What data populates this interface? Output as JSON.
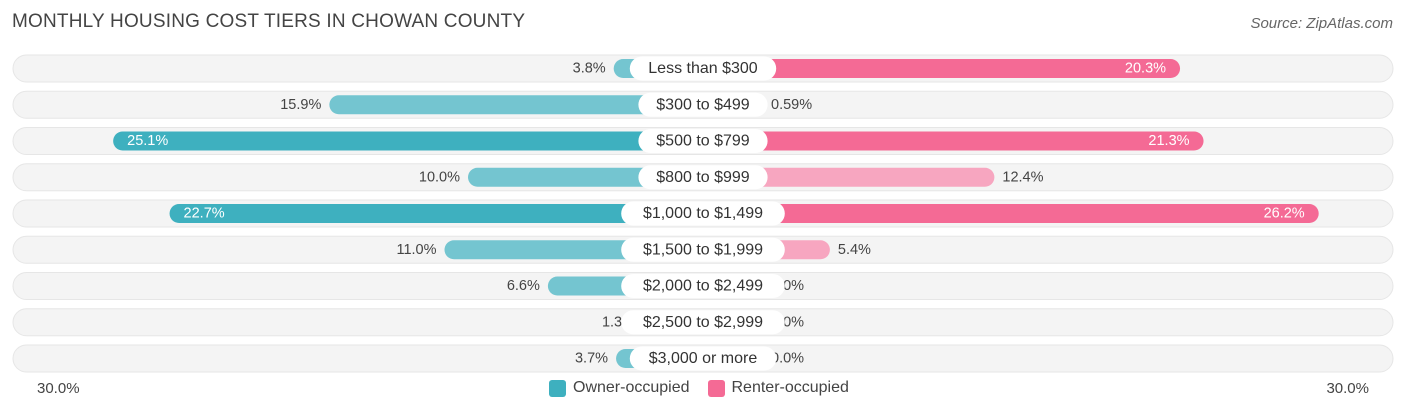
{
  "title": "MONTHLY HOUSING COST TIERS IN CHOWAN COUNTY",
  "source": "Source: ZipAtlas.com",
  "colors": {
    "owner": "#3eb0bf",
    "owner_light": "#74c5d0",
    "renter": "#f46a95",
    "renter_light": "#f7a6c0",
    "row_bg": "#f2f2f2"
  },
  "chart_data": {
    "type": "bar",
    "orientation": "diverging-horizontal",
    "xlim": [
      -30,
      30
    ],
    "axis_left_label": "30.0%",
    "axis_right_label": "30.0%",
    "categories": [
      "Less than $300",
      "$300 to $499",
      "$500 to $799",
      "$800 to $999",
      "$1,000 to $1,499",
      "$1,500 to $1,999",
      "$2,000 to $2,499",
      "$2,500 to $2,999",
      "$3,000 or more"
    ],
    "series": [
      {
        "name": "Owner-occupied",
        "side": "left",
        "values": [
          3.8,
          15.9,
          25.1,
          10.0,
          22.7,
          11.0,
          6.6,
          1.3,
          3.7
        ],
        "labels": [
          "3.8%",
          "15.9%",
          "25.1%",
          "10.0%",
          "22.7%",
          "11.0%",
          "6.6%",
          "1.3%",
          "3.7%"
        ]
      },
      {
        "name": "Renter-occupied",
        "side": "right",
        "values": [
          20.3,
          0.59,
          21.3,
          12.4,
          26.2,
          5.4,
          0.0,
          0.0,
          0.0
        ],
        "labels": [
          "20.3%",
          "0.59%",
          "21.3%",
          "12.4%",
          "26.2%",
          "5.4%",
          "0.0%",
          "0.0%",
          "0.0%"
        ]
      }
    ],
    "legend_position": "bottom-center"
  }
}
